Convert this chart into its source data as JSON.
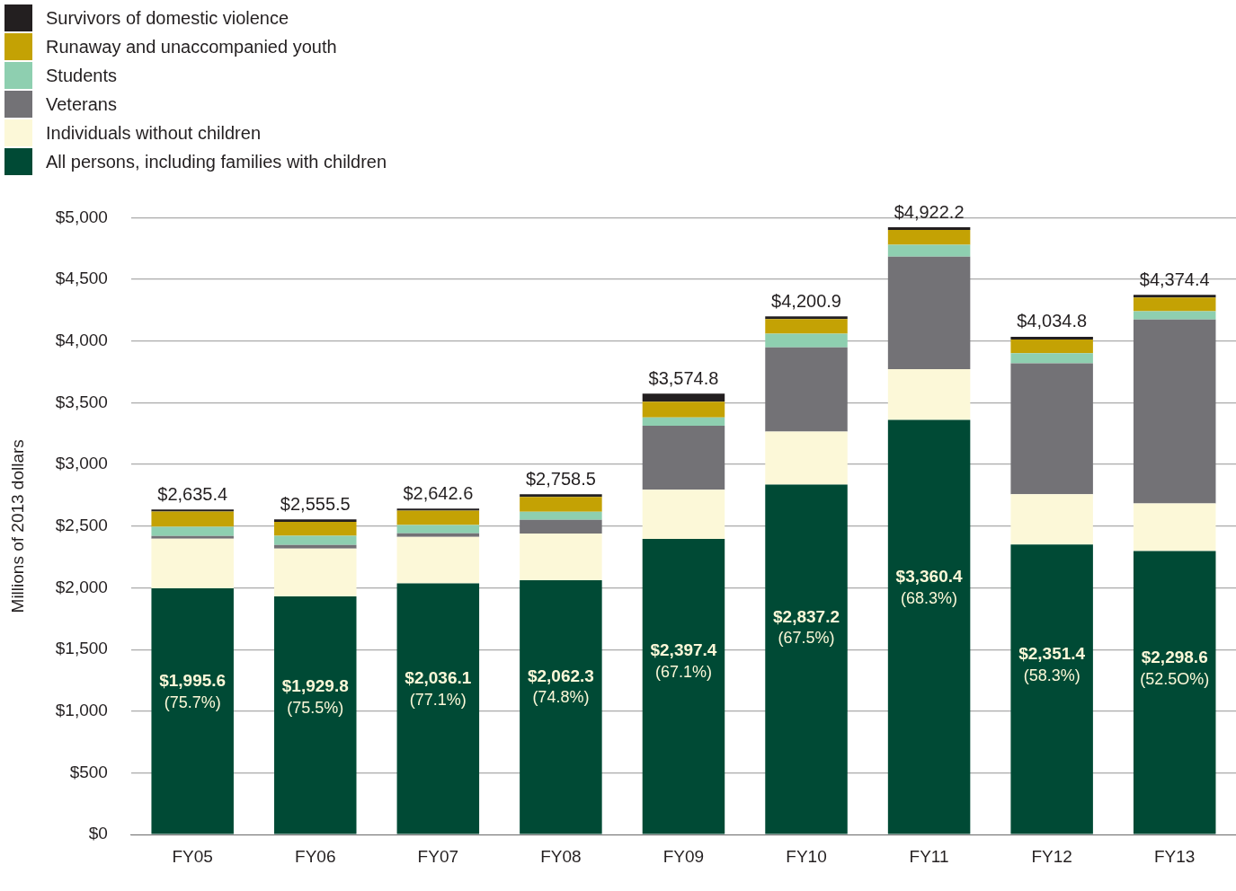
{
  "chart_data": {
    "type": "bar",
    "stacked": true,
    "ylabel": "Millions of 2013 dollars",
    "categories": [
      "FY05",
      "FY06",
      "FY07",
      "FY08",
      "FY09",
      "FY10",
      "FY11",
      "FY12",
      "FY13"
    ],
    "series": [
      {
        "name": "All persons, including families with children",
        "color": "#004a35",
        "values": [
          1995.6,
          1929.8,
          2036.1,
          2062.3,
          2397.4,
          2837.2,
          3360.4,
          2351.4,
          2298.6
        ],
        "value_labels": [
          "$1,995.6\n(75.7%)",
          "$1,929.8\n(75.5%)",
          "$2,036.1\n(77.1%)",
          "$2,062.3\n(74.8%)",
          "$2,397.4\n(67.1%)",
          "$2,837.2\n(67.5%)",
          "$3,360.4\n(68.3%)",
          "$2,351.4\n(58.3%)",
          "$2,298.6\n(52.5O%)"
        ]
      },
      {
        "name": "Individuals without children",
        "color": "#fcf8d8",
        "values": [
          403,
          388,
          376.5,
          377.2,
          398.4,
          429.7,
          412.8,
          407.4,
          384.8
        ]
      },
      {
        "name": "Veterans",
        "color": "#737276",
        "values": [
          22,
          30,
          30,
          111,
          519,
          682,
          912,
          1061,
          1491
        ]
      },
      {
        "name": "Students",
        "color": "#8ecfb0",
        "values": [
          74,
          74,
          67,
          67,
          67,
          111,
          96,
          82,
          67
        ]
      },
      {
        "name": "Runaway and unaccompanied youth",
        "color": "#c4a204",
        "values": [
          124,
          114,
          116,
          119,
          126,
          119,
          119,
          111,
          111
        ]
      },
      {
        "name": "Survivors of domestic violence",
        "color": "#231f20",
        "values": [
          17,
          20,
          17,
          22,
          67,
          22,
          22,
          22,
          22
        ]
      }
    ],
    "totals": [
      "$2,635.4",
      "$2,555.5",
      "$2,642.6",
      "$2,758.5",
      "$3,574.8",
      "$4,200.9",
      "$4,922.2",
      "$4,034.8",
      "$4,374.4"
    ],
    "ylim": [
      0,
      5000
    ],
    "yticks": [
      {
        "value": 0,
        "label": "$0"
      },
      {
        "value": 500,
        "label": "$500"
      },
      {
        "value": 1000,
        "label": "$1,000"
      },
      {
        "value": 1500,
        "label": "$1,500"
      },
      {
        "value": 2000,
        "label": "$2,000"
      },
      {
        "value": 2500,
        "label": "$2,500"
      },
      {
        "value": 3000,
        "label": "$3,000"
      },
      {
        "value": 3500,
        "label": "$3,500"
      },
      {
        "value": 4000,
        "label": "$4,000"
      },
      {
        "value": 4500,
        "label": "$4,500"
      },
      {
        "value": 5000,
        "label": "$5,000"
      }
    ],
    "grid": "y",
    "legend": "top left"
  }
}
